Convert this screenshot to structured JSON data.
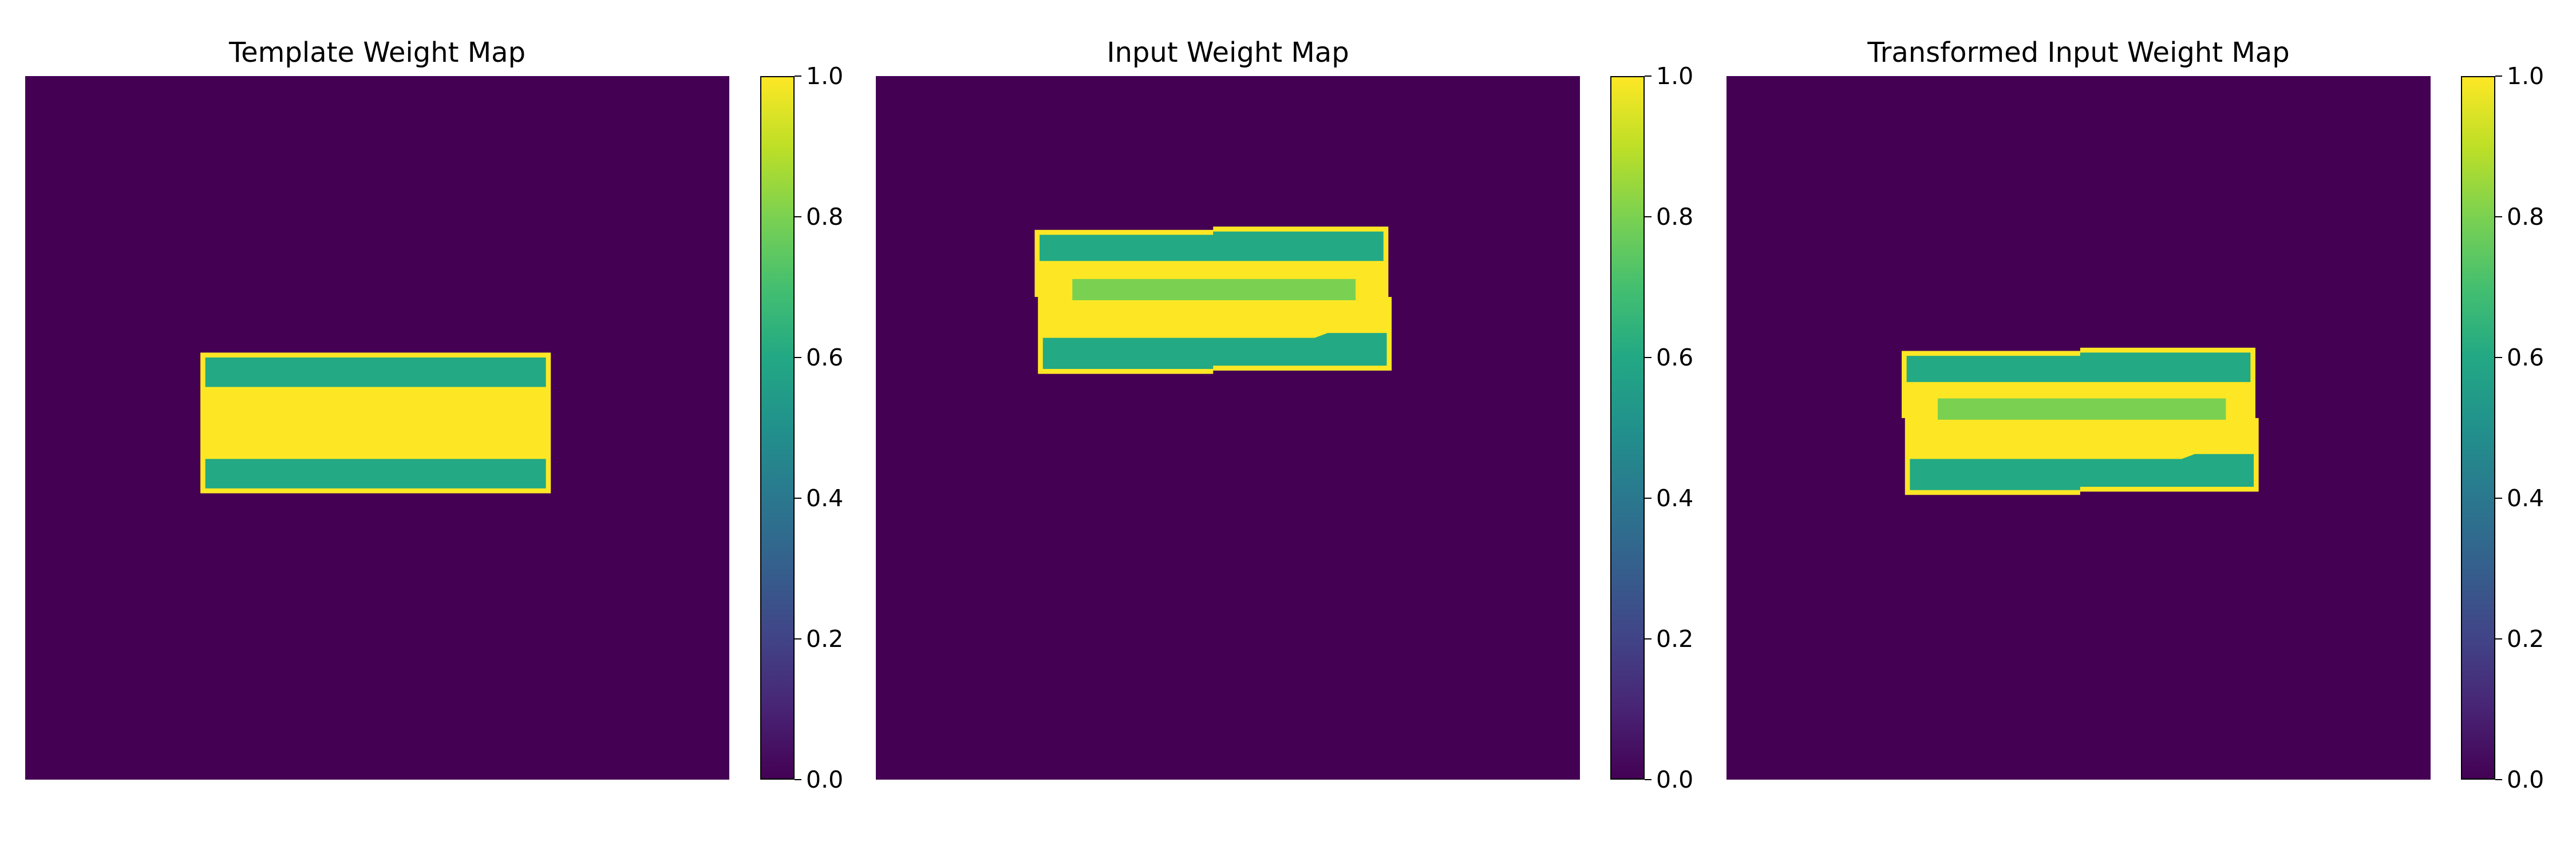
{
  "colors": {
    "c00": "#440154",
    "c06": "#23a983",
    "c08": "#7ad151",
    "c10": "#fde725"
  },
  "colorbar": {
    "ticks": [
      "0.0",
      "0.2",
      "0.4",
      "0.6",
      "0.8",
      "1.0"
    ]
  },
  "chart_data": [
    {
      "type": "heatmap",
      "title": "Template Weight Map",
      "vmin": 0.0,
      "vmax": 1.0,
      "colormap": "viridis",
      "background_value": 0.0,
      "regions": [
        {
          "value": 1.0,
          "shape": "rect",
          "x": [
            107,
            321
          ],
          "y": [
            169,
            255
          ]
        },
        {
          "value": 0.6,
          "shape": "rect",
          "x": [
            110,
            318
          ],
          "y": [
            172,
            190
          ]
        },
        {
          "value": 0.6,
          "shape": "rect",
          "x": [
            110,
            318
          ],
          "y": [
            234,
            252
          ]
        }
      ],
      "colorbar_ticks": [
        0.0,
        0.2,
        0.4,
        0.6,
        0.8,
        1.0
      ]
    },
    {
      "type": "heatmap",
      "title": "Input Weight Map",
      "vmin": 0.0,
      "vmax": 1.0,
      "colormap": "viridis",
      "background_value": 0.0,
      "regions": [
        {
          "value": 1.0,
          "shape": "polygon",
          "points": [
            [
              97,
              94
            ],
            [
              206,
              94
            ],
            [
              206,
              92
            ],
            [
              313,
              92
            ],
            [
              313,
              135
            ],
            [
              315,
              135
            ],
            [
              315,
              180
            ],
            [
              206,
              180
            ],
            [
              206,
              182
            ],
            [
              99,
              182
            ],
            [
              99,
              135
            ],
            [
              97,
              135
            ]
          ]
        },
        {
          "value": 0.6,
          "shape": "polygon",
          "points": [
            [
              100,
              97
            ],
            [
              206,
              97
            ],
            [
              206,
              95
            ],
            [
              310,
              95
            ],
            [
              310,
              113
            ],
            [
              100,
              113
            ]
          ]
        },
        {
          "value": 0.8,
          "shape": "polygon",
          "points": [
            [
              120,
              124
            ],
            [
              293,
              124
            ],
            [
              293,
              137
            ],
            [
              120,
              137
            ]
          ]
        },
        {
          "value": 0.6,
          "shape": "polygon",
          "points": [
            [
              102,
              160
            ],
            [
              268,
              160
            ],
            [
              276,
              157
            ],
            [
              312,
              157
            ],
            [
              312,
              177
            ],
            [
              206,
              177
            ],
            [
              206,
              179
            ],
            [
              102,
              179
            ]
          ]
        }
      ],
      "colorbar_ticks": [
        0.0,
        0.2,
        0.4,
        0.6,
        0.8,
        1.0
      ]
    },
    {
      "type": "heatmap",
      "title": "Transformed Input Weight Map",
      "vmin": 0.0,
      "vmax": 1.0,
      "colormap": "viridis",
      "background_value": 0.0,
      "regions": [
        {
          "value": 1.0,
          "shape": "polygon",
          "points": [
            [
              107,
              168
            ],
            [
              216,
              168
            ],
            [
              216,
              166
            ],
            [
              323,
              166
            ],
            [
              323,
              209
            ],
            [
              325,
              209
            ],
            [
              325,
              254
            ],
            [
              216,
              254
            ],
            [
              216,
              256
            ],
            [
              109,
              256
            ],
            [
              109,
              209
            ],
            [
              107,
              209
            ]
          ]
        },
        {
          "value": 0.6,
          "shape": "polygon",
          "points": [
            [
              110,
              171
            ],
            [
              216,
              171
            ],
            [
              216,
              169
            ],
            [
              320,
              169
            ],
            [
              320,
              187
            ],
            [
              110,
              187
            ]
          ]
        },
        {
          "value": 0.8,
          "shape": "polygon",
          "points": [
            [
              129,
              197
            ],
            [
              305,
              197
            ],
            [
              305,
              210
            ],
            [
              129,
              210
            ]
          ]
        },
        {
          "value": 0.6,
          "shape": "polygon",
          "points": [
            [
              112,
              234
            ],
            [
              278,
              234
            ],
            [
              286,
              231
            ],
            [
              322,
              231
            ],
            [
              322,
              251
            ],
            [
              216,
              251
            ],
            [
              216,
              253
            ],
            [
              112,
              253
            ]
          ]
        }
      ],
      "colorbar_ticks": [
        0.0,
        0.2,
        0.4,
        0.6,
        0.8,
        1.0
      ]
    }
  ]
}
